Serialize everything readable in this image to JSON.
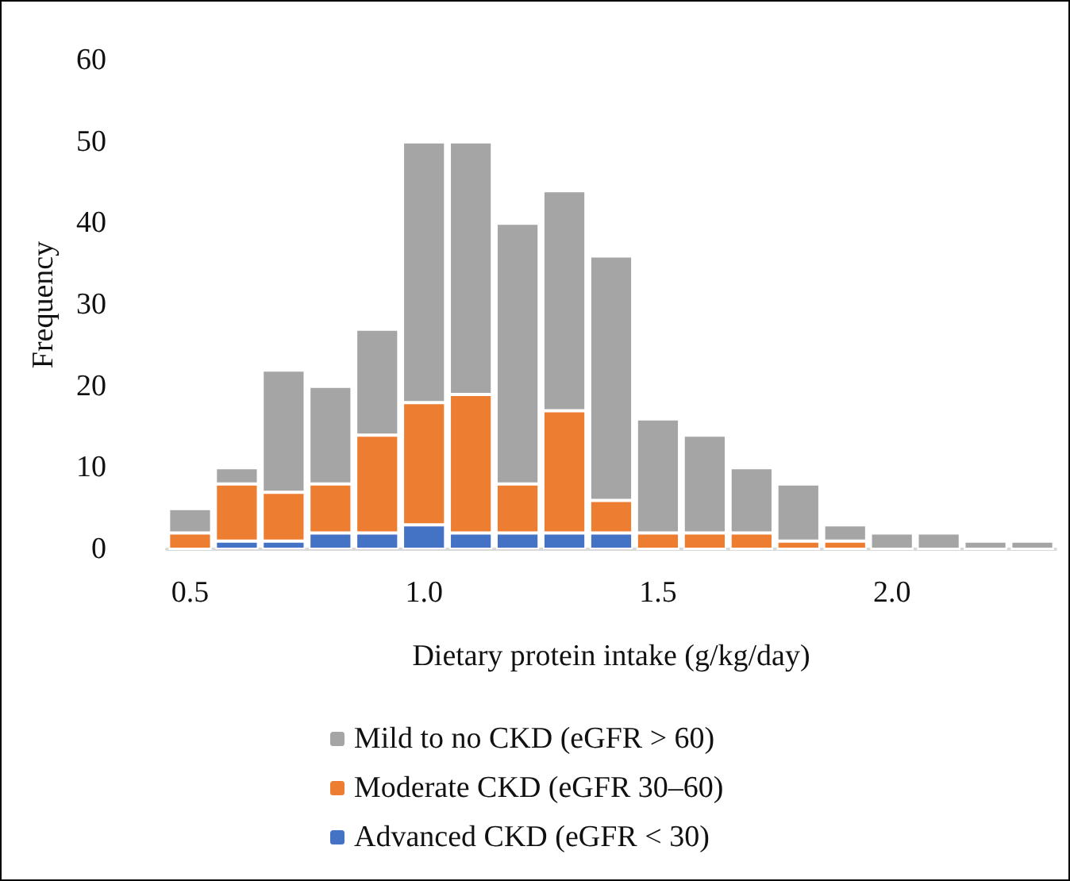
{
  "chart_data": {
    "type": "bar",
    "stacked": true,
    "xlabel": "Dietary protein intake (g/kg/day)",
    "ylabel": "Frequency",
    "categories": [
      "0.5",
      null,
      null,
      null,
      null,
      "1.0",
      null,
      null,
      null,
      null,
      "1.5",
      null,
      null,
      null,
      null,
      "2.0",
      null,
      null,
      null
    ],
    "series": [
      {
        "name": "Advanced CKD (eGFR < 30)",
        "color": "#4472c4",
        "values": [
          0,
          1,
          1,
          2,
          2,
          3,
          2,
          2,
          2,
          2,
          0,
          0,
          0,
          0,
          0,
          0,
          0,
          0,
          0
        ]
      },
      {
        "name": "Moderate CKD (eGFR 30–60)",
        "color": "#ed7d31",
        "values": [
          2,
          7,
          6,
          6,
          12,
          15,
          17,
          6,
          15,
          4,
          2,
          2,
          2,
          1,
          1,
          0,
          0,
          0,
          0
        ]
      },
      {
        "name": "Mild to no CKD (eGFR > 60)",
        "color": "#a5a5a5",
        "values": [
          3,
          2,
          15,
          12,
          13,
          32,
          31,
          32,
          27,
          30,
          14,
          12,
          8,
          7,
          2,
          2,
          2,
          1,
          1
        ]
      }
    ],
    "ylim": [
      0,
      60
    ],
    "yticks": [
      0,
      10,
      20,
      30,
      40,
      50,
      60
    ],
    "grid": false,
    "legend": "bottom"
  }
}
